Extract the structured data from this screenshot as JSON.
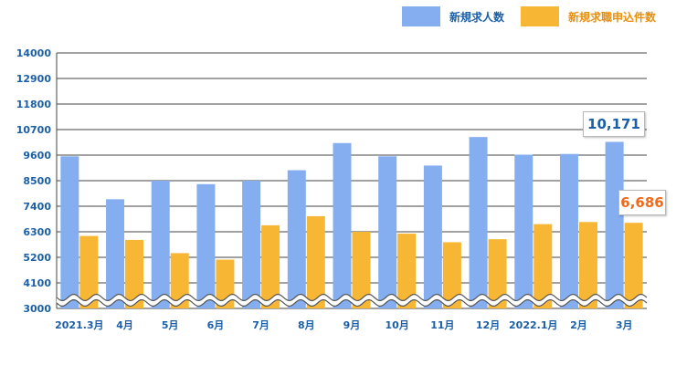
{
  "legend": {
    "series1": "新規求人数",
    "series2": "新規求職申込件数"
  },
  "callouts": {
    "series1_last": "10,171",
    "series2_last": "6,686"
  },
  "colors": {
    "series1": "#84aef0",
    "series2": "#f8b635",
    "axis_text": "#1a5fa8",
    "series1_callout_text": "#1a5fa8",
    "series2_callout_text": "#f06a1a",
    "grid": "#444444"
  },
  "chart_data": {
    "type": "bar",
    "categories": [
      "2021.3月",
      "4月",
      "5月",
      "6月",
      "7月",
      "8月",
      "9月",
      "10月",
      "11月",
      "12月",
      "2022.1月",
      "2月",
      "3月"
    ],
    "series": [
      {
        "name": "新規求人数",
        "values": [
          9550,
          7700,
          8500,
          8350,
          8500,
          8950,
          10120,
          9550,
          9150,
          10380,
          9620,
          9650,
          10171
        ]
      },
      {
        "name": "新規求職申込件数",
        "values": [
          6120,
          5950,
          5380,
          5100,
          6580,
          6970,
          6300,
          6220,
          5850,
          5980,
          6630,
          6720,
          6686
        ]
      }
    ],
    "y_ticks": [
      "14000",
      "12900",
      "11800",
      "10700",
      "9600",
      "8500",
      "7400",
      "6300",
      "5200",
      "4100",
      "3000"
    ],
    "ylim": [
      3000,
      14000
    ],
    "axis_break": true,
    "grid": true,
    "legend_position": "top-right"
  }
}
